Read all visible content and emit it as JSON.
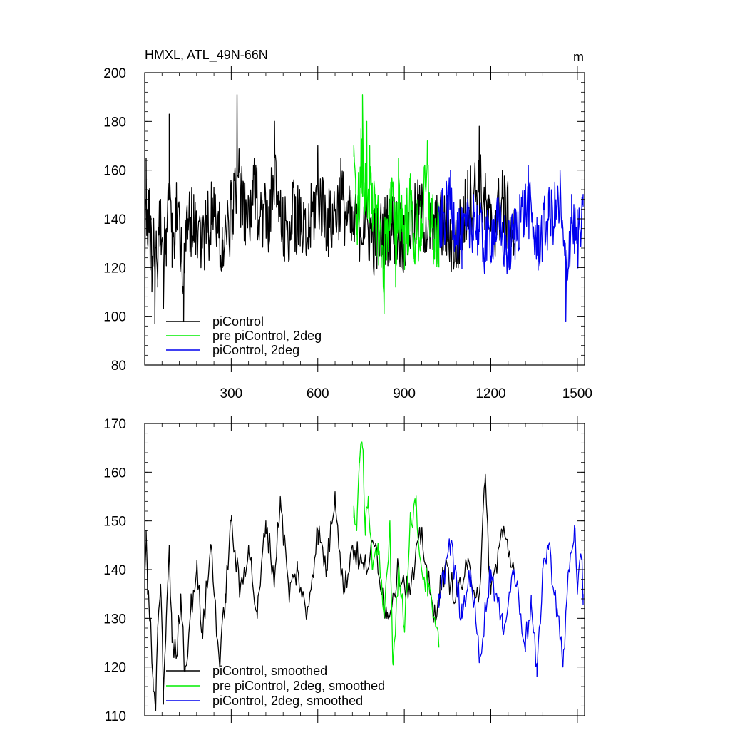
{
  "figure": {
    "title": "HMXL, ATL_49N-66N",
    "units": "m"
  },
  "colors": {
    "piControl": "#000000",
    "pre_piControl_2deg": "#00ee00",
    "piControl_2deg": "#0000ee"
  },
  "chart_data": [
    {
      "type": "line",
      "title": "HMXL, ATL_49N-66N",
      "units_label": "m",
      "xlim": [
        0,
        1525
      ],
      "ylim": [
        80,
        200
      ],
      "xticks": [
        300,
        600,
        900,
        1200,
        1500
      ],
      "yticks": [
        80,
        100,
        120,
        140,
        160,
        180,
        200
      ],
      "legend_placement": "lower-left",
      "series": [
        {
          "name": "piControl",
          "color": "#000000",
          "x_range": [
            1,
            1280
          ],
          "mean": 135,
          "spread": 13,
          "samples": [
            [
              1,
              125
            ],
            [
              5,
              165
            ],
            [
              10,
              130
            ],
            [
              15,
              150
            ],
            [
              20,
              128
            ],
            [
              25,
              110
            ],
            [
              30,
              140
            ],
            [
              35,
              97
            ],
            [
              40,
              135
            ],
            [
              45,
              112
            ],
            [
              55,
              148
            ],
            [
              65,
              103
            ],
            [
              75,
              136
            ],
            [
              85,
              183
            ],
            [
              95,
              120
            ],
            [
              110,
              155
            ],
            [
              125,
              128
            ],
            [
              135,
              98
            ],
            [
              150,
              140
            ],
            [
              170,
              150
            ],
            [
              200,
              128
            ],
            [
              240,
              153
            ],
            [
              270,
              120
            ],
            [
              300,
              148
            ],
            [
              320,
              191
            ],
            [
              350,
              140
            ],
            [
              380,
              165
            ],
            [
              430,
              145
            ],
            [
              450,
              180
            ],
            [
              480,
              130
            ],
            [
              520,
              150
            ],
            [
              560,
              125
            ],
            [
              600,
              170
            ],
            [
              640,
              140
            ],
            [
              680,
              165
            ],
            [
              720,
              135
            ],
            [
              760,
              145
            ],
            [
              800,
              125
            ],
            [
              850,
              140
            ],
            [
              900,
              130
            ],
            [
              950,
              150
            ],
            [
              1000,
              135
            ],
            [
              1040,
              140
            ],
            [
              1080,
              120
            ],
            [
              1120,
              160
            ],
            [
              1160,
              178
            ],
            [
              1200,
              135
            ],
            [
              1240,
              160
            ],
            [
              1280,
              130
            ]
          ]
        },
        {
          "name": "pre piControl, 2deg",
          "color": "#00ee00",
          "x_range": [
            725,
            1020
          ],
          "mean": 138,
          "spread": 14,
          "samples": [
            [
              725,
              170
            ],
            [
              740,
              150
            ],
            [
              750,
              177
            ],
            [
              755,
              191
            ],
            [
              760,
              155
            ],
            [
              770,
              180
            ],
            [
              780,
              170
            ],
            [
              790,
              135
            ],
            [
              800,
              150
            ],
            [
              820,
              120
            ],
            [
              830,
              101
            ],
            [
              840,
              140
            ],
            [
              860,
              155
            ],
            [
              870,
              112
            ],
            [
              880,
              165
            ],
            [
              900,
              130
            ],
            [
              920,
              150
            ],
            [
              940,
              125
            ],
            [
              960,
              140
            ],
            [
              980,
              172
            ],
            [
              1000,
              130
            ],
            [
              1020,
              120
            ]
          ]
        },
        {
          "name": "piControl, 2deg",
          "color": "#0000ee",
          "x_range": [
            1020,
            1520
          ],
          "mean": 132,
          "spread": 11,
          "samples": [
            [
              1020,
              145
            ],
            [
              1060,
              160
            ],
            [
              1100,
              130
            ],
            [
              1140,
              150
            ],
            [
              1180,
              125
            ],
            [
              1220,
              145
            ],
            [
              1260,
              120
            ],
            [
              1300,
              150
            ],
            [
              1330,
              162
            ],
            [
              1360,
              125
            ],
            [
              1400,
              150
            ],
            [
              1440,
              160
            ],
            [
              1460,
              98
            ],
            [
              1480,
              150
            ],
            [
              1500,
              130
            ],
            [
              1520,
              145
            ]
          ]
        }
      ]
    },
    {
      "type": "line",
      "xlim": [
        0,
        1525
      ],
      "ylim": [
        110,
        170
      ],
      "xticks": [
        300,
        600,
        900,
        1200,
        1500
      ],
      "yticks": [
        110,
        120,
        130,
        140,
        150,
        160,
        170
      ],
      "legend_placement": "lower-left",
      "series": [
        {
          "name": "piControl, smoothed",
          "color": "#000000",
          "samples": [
            [
              1,
              140
            ],
            [
              5,
              148
            ],
            [
              10,
              135
            ],
            [
              20,
              130
            ],
            [
              30,
              115
            ],
            [
              38,
              111
            ],
            [
              45,
              128
            ],
            [
              55,
              137
            ],
            [
              65,
              115
            ],
            [
              75,
              130
            ],
            [
              85,
              145
            ],
            [
              95,
              125
            ],
            [
              110,
              122
            ],
            [
              125,
              135
            ],
            [
              140,
              119
            ],
            [
              160,
              132
            ],
            [
              180,
              140
            ],
            [
              200,
              127
            ],
            [
              230,
              145
            ],
            [
              260,
              120
            ],
            [
              280,
              135
            ],
            [
              300,
              150
            ],
            [
              330,
              135
            ],
            [
              360,
              145
            ],
            [
              390,
              130
            ],
            [
              420,
              150
            ],
            [
              450,
              138
            ],
            [
              470,
              155
            ],
            [
              500,
              135
            ],
            [
              530,
              140
            ],
            [
              560,
              130
            ],
            [
              600,
              148
            ],
            [
              630,
              140
            ],
            [
              660,
              156
            ],
            [
              690,
              135
            ],
            [
              720,
              145
            ],
            [
              760,
              140
            ],
            [
              800,
              145
            ],
            [
              840,
              130
            ],
            [
              880,
              140
            ],
            [
              920,
              135
            ],
            [
              960,
              148
            ],
            [
              1000,
              130
            ],
            [
              1040,
              140
            ],
            [
              1080,
              135
            ],
            [
              1120,
              140
            ],
            [
              1160,
              135
            ],
            [
              1180,
              158
            ],
            [
              1200,
              135
            ],
            [
              1240,
              148
            ],
            [
              1280,
              140
            ]
          ]
        },
        {
          "name": "pre piControl, 2deg, smoothed",
          "color": "#00ee00",
          "samples": [
            [
              725,
              153
            ],
            [
              735,
              148
            ],
            [
              745,
              162
            ],
            [
              755,
              165
            ],
            [
              765,
              150
            ],
            [
              775,
              155
            ],
            [
              790,
              140
            ],
            [
              810,
              143
            ],
            [
              830,
              130
            ],
            [
              850,
              150
            ],
            [
              860,
              121
            ],
            [
              880,
              140
            ],
            [
              900,
              128
            ],
            [
              920,
              150
            ],
            [
              940,
              153
            ],
            [
              960,
              140
            ],
            [
              980,
              137
            ],
            [
              1000,
              130
            ],
            [
              1020,
              124
            ]
          ]
        },
        {
          "name": "piControl, 2deg, smoothed",
          "color": "#0000ee",
          "samples": [
            [
              1020,
              135
            ],
            [
              1060,
              145
            ],
            [
              1100,
              130
            ],
            [
              1130,
              140
            ],
            [
              1160,
              122
            ],
            [
              1200,
              140
            ],
            [
              1240,
              128
            ],
            [
              1280,
              140
            ],
            [
              1320,
              125
            ],
            [
              1340,
              133
            ],
            [
              1360,
              118
            ],
            [
              1380,
              140
            ],
            [
              1400,
              145
            ],
            [
              1430,
              132
            ],
            [
              1450,
              120
            ],
            [
              1470,
              140
            ],
            [
              1490,
              149
            ],
            [
              1500,
              135
            ],
            [
              1515,
              142
            ],
            [
              1520,
              135
            ]
          ]
        }
      ]
    }
  ]
}
